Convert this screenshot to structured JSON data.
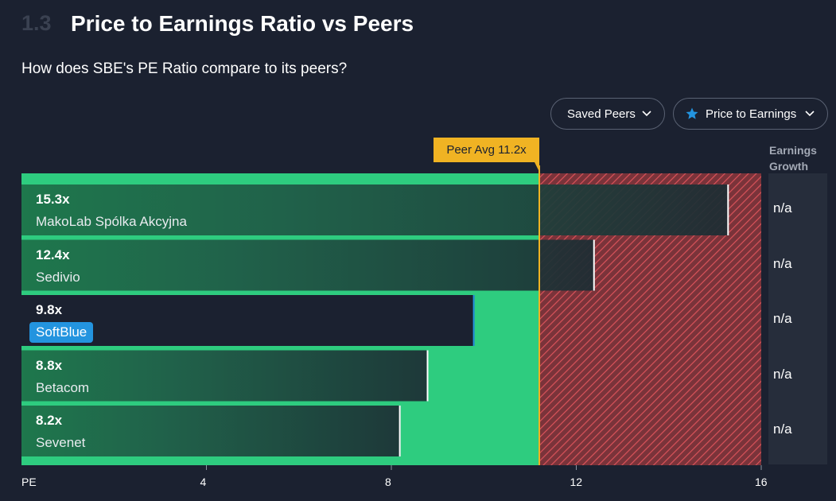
{
  "section": {
    "number": "1.3",
    "title": "Price to Earnings Ratio vs Peers",
    "subtitle": "How does SBE's PE Ratio compare to its peers?"
  },
  "controls": {
    "saved_peers_label": "Saved Peers",
    "metric_label": "Price to Earnings"
  },
  "colors": {
    "background": "#1b2130",
    "good_zone": "#2ecc7f",
    "bad_zone": "#d9535a",
    "peer_avg": "#f0b323",
    "highlight": "#2394df"
  },
  "chart_data": {
    "type": "bar",
    "orientation": "horizontal",
    "xlabel": "PE",
    "xlim": [
      0,
      16
    ],
    "xticks": [
      4,
      8,
      12,
      16
    ],
    "peer_average": 11.2,
    "peer_average_label": "Peer Avg 11.2x",
    "categories": [
      "MakoLab Spólka Akcyjna",
      "Sedivio",
      "SoftBlue",
      "Betacom",
      "Sevenet"
    ],
    "values": [
      15.3,
      12.4,
      9.8,
      8.8,
      8.2
    ],
    "value_labels": [
      "15.3x",
      "12.4x",
      "9.8x",
      "8.8x",
      "8.2x"
    ],
    "highlighted": "SoftBlue",
    "earnings_growth_header": "Earnings Growth",
    "earnings_growth": [
      "n/a",
      "n/a",
      "n/a",
      "n/a",
      "n/a"
    ]
  }
}
